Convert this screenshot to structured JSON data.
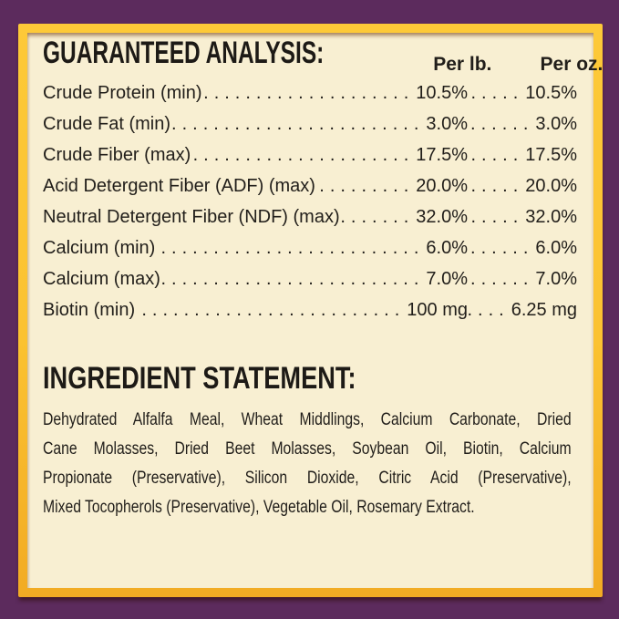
{
  "palette": {
    "background_purple": "#5c2b5d",
    "frame_gold": "#fbc231",
    "panel_cream": "#f8efd2",
    "text_color": "#211e1a"
  },
  "guaranteed_analysis": {
    "title": "GUARANTEED ANALYSIS:",
    "columns": {
      "per_lb": "Per lb.",
      "per_oz": "Per oz."
    },
    "rows": [
      {
        "label": "Crude Protein (min)",
        "per_lb": "10.5%",
        "per_oz": "10.5%"
      },
      {
        "label": "Crude Fat (min)",
        "per_lb": "3.0%",
        "per_oz": "3.0%"
      },
      {
        "label": "Crude Fiber (max)",
        "per_lb": "17.5%",
        "per_oz": "17.5%"
      },
      {
        "label": "Acid Detergent Fiber (ADF) (max)",
        "per_lb": "20.0%",
        "per_oz": "20.0%"
      },
      {
        "label": "Neutral Detergent Fiber (NDF) (max)",
        "per_lb": "32.0%",
        "per_oz": "32.0%"
      },
      {
        "label": "Calcium (min)",
        "per_lb": "6.0%",
        "per_oz": "6.0%"
      },
      {
        "label": "Calcium (max)",
        "per_lb": "7.0%",
        "per_oz": "7.0%"
      },
      {
        "label": "Biotin (min)",
        "per_lb": "100 mg",
        "per_oz": "6.25 mg"
      }
    ]
  },
  "ingredient_statement": {
    "title": "INGREDIENT STATEMENT:",
    "lines": [
      "Dehydrated Alfalfa Meal, Wheat Middlings, Calcium Carbonate, Dried",
      "Cane Molasses, Dried Beet Molasses, Soybean Oil, Biotin, Calcium",
      "Propionate (Preservative), Silicon Dioxide, Citric Acid (Preservative),",
      "Mixed Tocopherols (Preservative), Vegetable Oil, Rosemary Extract."
    ]
  }
}
